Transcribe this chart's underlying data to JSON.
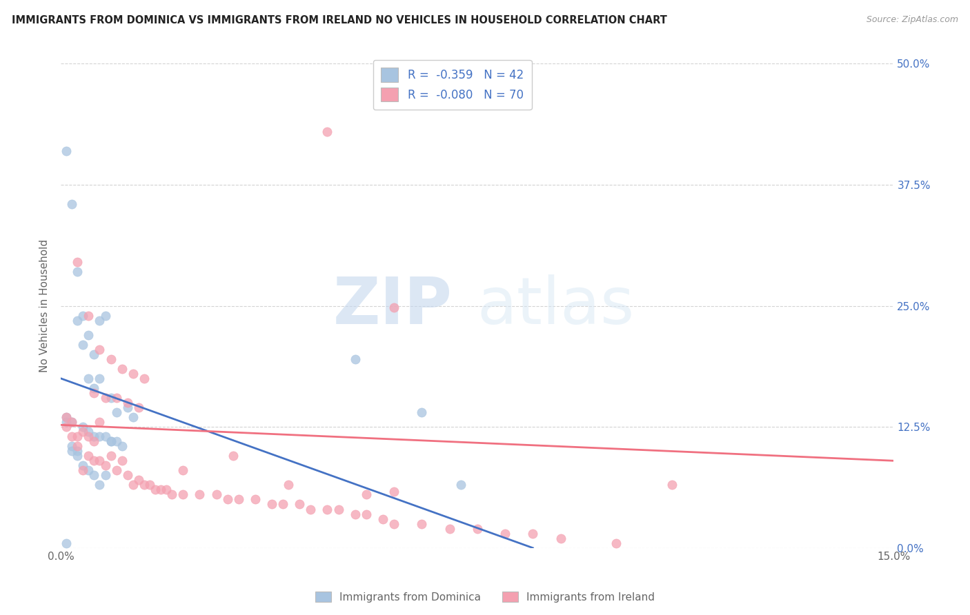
{
  "title": "IMMIGRANTS FROM DOMINICA VS IMMIGRANTS FROM IRELAND NO VEHICLES IN HOUSEHOLD CORRELATION CHART",
  "source": "Source: ZipAtlas.com",
  "ylabel": "No Vehicles in Household",
  "xlim": [
    0.0,
    0.15
  ],
  "ylim": [
    0.0,
    0.5
  ],
  "xticks": [
    0.0,
    0.05,
    0.1,
    0.15
  ],
  "xtick_labels": [
    "0.0%",
    "",
    "",
    "15.0%"
  ],
  "yticks": [
    0.0,
    0.125,
    0.25,
    0.375,
    0.5
  ],
  "ytick_labels_right": [
    "0.0%",
    "12.5%",
    "25.0%",
    "37.5%",
    "50.0%"
  ],
  "dominica_color": "#a8c4e0",
  "ireland_color": "#f4a0b0",
  "dominica_line_color": "#4472c4",
  "ireland_line_color": "#f07080",
  "legend_dominica_R": "-0.359",
  "legend_dominica_N": "42",
  "legend_ireland_R": "-0.080",
  "legend_ireland_N": "70",
  "legend_label_dominica": "Immigrants from Dominica",
  "legend_label_ireland": "Immigrants from Ireland",
  "watermark_zip": "ZIP",
  "watermark_atlas": "atlas",
  "background_color": "#ffffff",
  "dominica_x": [
    0.001,
    0.002,
    0.003,
    0.003,
    0.004,
    0.004,
    0.005,
    0.005,
    0.006,
    0.006,
    0.007,
    0.007,
    0.008,
    0.009,
    0.009,
    0.01,
    0.01,
    0.011,
    0.012,
    0.013,
    0.001,
    0.002,
    0.002,
    0.003,
    0.004,
    0.005,
    0.006,
    0.007,
    0.008,
    0.009,
    0.001,
    0.002,
    0.003,
    0.004,
    0.005,
    0.006,
    0.007,
    0.008,
    0.053,
    0.065,
    0.072,
    0.001
  ],
  "dominica_y": [
    0.41,
    0.355,
    0.285,
    0.235,
    0.21,
    0.24,
    0.22,
    0.175,
    0.165,
    0.2,
    0.235,
    0.175,
    0.24,
    0.155,
    0.11,
    0.14,
    0.11,
    0.105,
    0.145,
    0.135,
    0.135,
    0.13,
    0.105,
    0.1,
    0.125,
    0.12,
    0.115,
    0.115,
    0.115,
    0.11,
    0.13,
    0.1,
    0.095,
    0.085,
    0.08,
    0.075,
    0.065,
    0.075,
    0.195,
    0.14,
    0.065,
    0.005
  ],
  "ireland_x": [
    0.001,
    0.001,
    0.002,
    0.002,
    0.003,
    0.003,
    0.003,
    0.004,
    0.004,
    0.005,
    0.005,
    0.005,
    0.006,
    0.006,
    0.006,
    0.007,
    0.007,
    0.007,
    0.008,
    0.008,
    0.009,
    0.009,
    0.01,
    0.01,
    0.011,
    0.011,
    0.012,
    0.012,
    0.013,
    0.013,
    0.014,
    0.014,
    0.015,
    0.015,
    0.016,
    0.017,
    0.018,
    0.019,
    0.02,
    0.022,
    0.025,
    0.028,
    0.03,
    0.032,
    0.035,
    0.038,
    0.04,
    0.043,
    0.045,
    0.048,
    0.05,
    0.053,
    0.055,
    0.058,
    0.06,
    0.065,
    0.07,
    0.075,
    0.08,
    0.085,
    0.09,
    0.1,
    0.048,
    0.06,
    0.022,
    0.031,
    0.041,
    0.055,
    0.11,
    0.06
  ],
  "ireland_y": [
    0.135,
    0.125,
    0.13,
    0.115,
    0.295,
    0.115,
    0.105,
    0.12,
    0.08,
    0.24,
    0.115,
    0.095,
    0.16,
    0.11,
    0.09,
    0.205,
    0.13,
    0.09,
    0.155,
    0.085,
    0.195,
    0.095,
    0.155,
    0.08,
    0.185,
    0.09,
    0.15,
    0.075,
    0.18,
    0.065,
    0.145,
    0.07,
    0.175,
    0.065,
    0.065,
    0.06,
    0.06,
    0.06,
    0.055,
    0.055,
    0.055,
    0.055,
    0.05,
    0.05,
    0.05,
    0.045,
    0.045,
    0.045,
    0.04,
    0.04,
    0.04,
    0.035,
    0.035,
    0.03,
    0.025,
    0.025,
    0.02,
    0.02,
    0.015,
    0.015,
    0.01,
    0.005,
    0.43,
    0.248,
    0.08,
    0.095,
    0.065,
    0.055,
    0.065,
    0.058
  ],
  "dominica_trend_x": [
    0.0,
    0.085
  ],
  "dominica_trend_y": [
    0.175,
    0.0
  ],
  "ireland_trend_x": [
    0.0,
    0.15
  ],
  "ireland_trend_y": [
    0.127,
    0.09
  ]
}
